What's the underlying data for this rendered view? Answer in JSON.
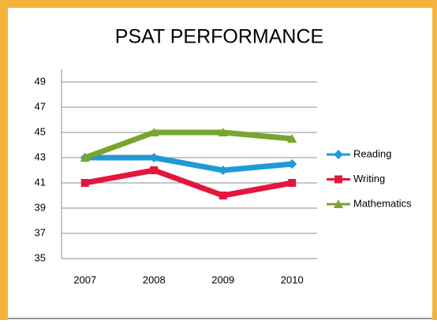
{
  "chart_data": {
    "type": "line",
    "title": "PSAT PERFORMANCE",
    "categories": [
      "2007",
      "2008",
      "2009",
      "2010"
    ],
    "series": [
      {
        "name": "Reading",
        "color": "#1f9ad6",
        "values": [
          43,
          43,
          42,
          42.5
        ]
      },
      {
        "name": "Writing",
        "color": "#e3173e",
        "values": [
          41,
          42,
          40,
          41
        ]
      },
      {
        "name": "Mathematics",
        "color": "#77a52f",
        "values": [
          43,
          45,
          45,
          44.5
        ]
      }
    ],
    "ylim": [
      35,
      49
    ],
    "yticks": [
      35,
      37,
      39,
      41,
      43,
      45,
      47,
      49
    ],
    "grid": true,
    "legend": "right"
  }
}
